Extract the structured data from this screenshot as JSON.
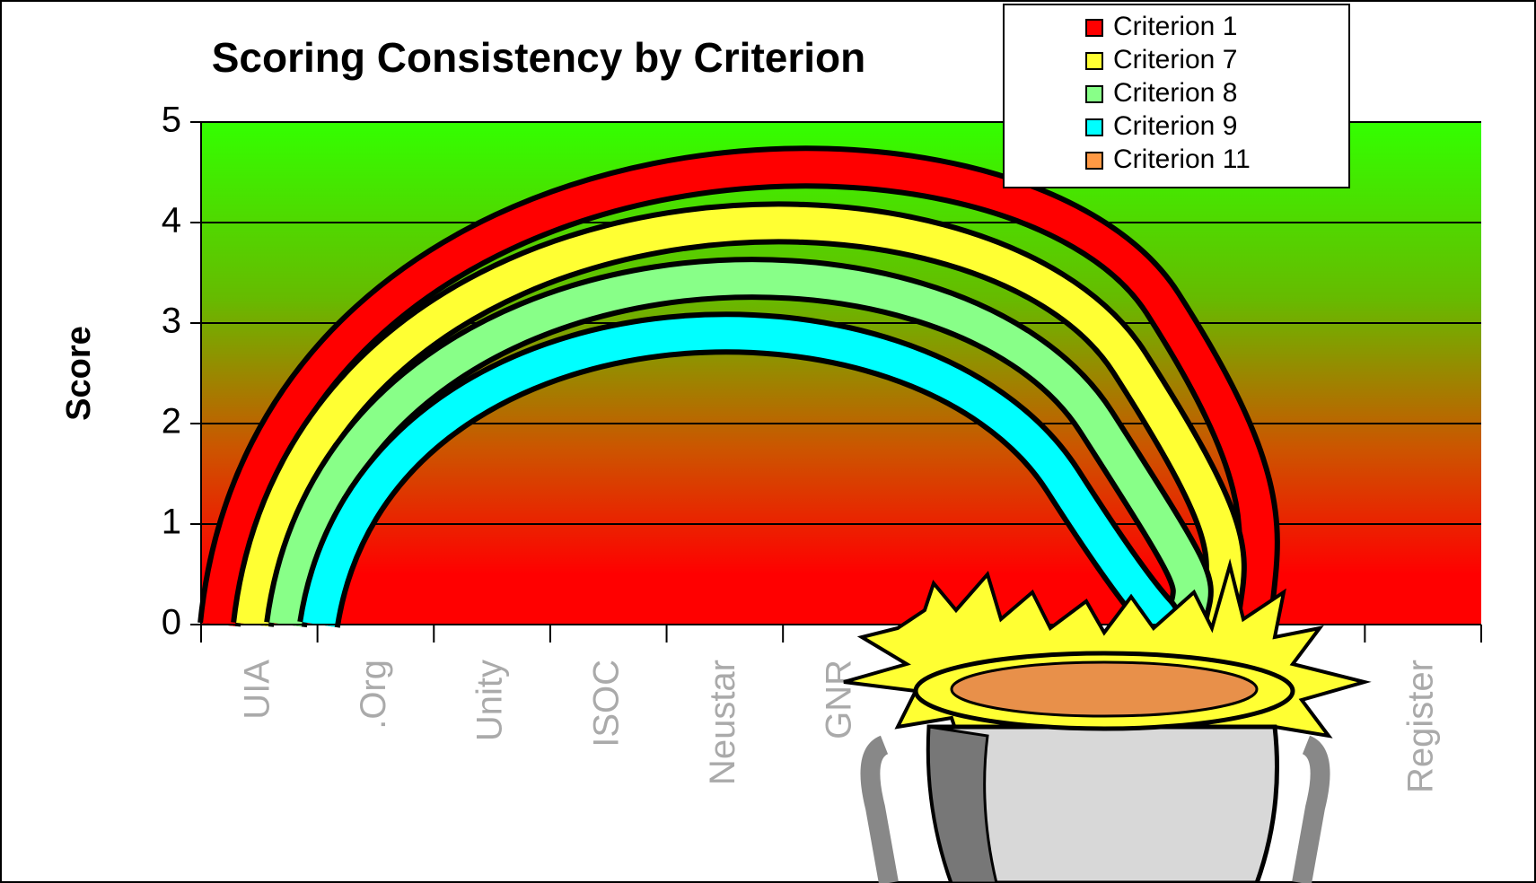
{
  "chart_data": {
    "type": "bar",
    "title": "Scoring Consistency by Criterion",
    "y_label": "Score",
    "categories": [
      "UIA",
      ".Org",
      "Unity",
      "ISOC",
      "Neustar",
      "GNR",
      null,
      null,
      null,
      null,
      "Register"
    ],
    "series": [
      {
        "name": "Criterion 1",
        "color": "#ff0000"
      },
      {
        "name": "Criterion 7",
        "color": "#ffff33"
      },
      {
        "name": "Criterion 8",
        "color": "#88ff88"
      },
      {
        "name": "Criterion 9",
        "color": "#00ffff"
      },
      {
        "name": "Criterion 11",
        "color": "#ff9944"
      }
    ],
    "ylim": [
      0,
      5
    ],
    "yticks": [
      0,
      1,
      2,
      3,
      4,
      5
    ],
    "grid": true,
    "legend": "top-right"
  }
}
